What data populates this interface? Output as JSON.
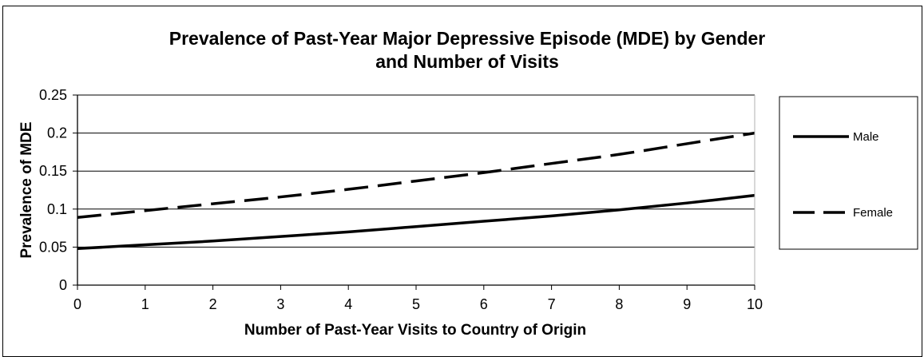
{
  "chart_data": {
    "type": "line",
    "title_line1": "Prevalence of Past-Year Major Depressive Episode (MDE) by Gender",
    "title_line2": "and Number of Visits",
    "xlabel": "Number of Past-Year Visits to Country of Origin",
    "ylabel": "Prevalence of MDE",
    "x": [
      0,
      1,
      2,
      3,
      4,
      5,
      6,
      7,
      8,
      9,
      10
    ],
    "xlim": [
      0,
      10
    ],
    "ylim": [
      0,
      0.25
    ],
    "y_ticks": [
      "0",
      "0.05",
      "0.1",
      "0.15",
      "0.2",
      "0.25"
    ],
    "x_ticks": [
      "0",
      "1",
      "2",
      "3",
      "4",
      "5",
      "6",
      "7",
      "8",
      "9",
      "10"
    ],
    "grid": "horizontal",
    "legend_position": "right",
    "series": [
      {
        "name": "Male",
        "style": "solid",
        "color": "#000000",
        "values": [
          0.048,
          0.053,
          0.058,
          0.064,
          0.07,
          0.077,
          0.084,
          0.091,
          0.099,
          0.108,
          0.118
        ]
      },
      {
        "name": "Female",
        "style": "dashed",
        "color": "#000000",
        "values": [
          0.089,
          0.098,
          0.107,
          0.116,
          0.126,
          0.137,
          0.148,
          0.16,
          0.172,
          0.186,
          0.2
        ]
      }
    ]
  }
}
